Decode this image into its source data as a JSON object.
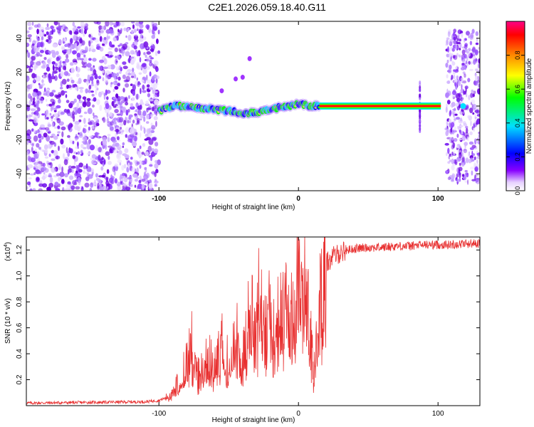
{
  "chart_data": [
    {
      "type": "heatmap",
      "title": "C2E1.2026.059.18.40.G11",
      "xlabel": "Height of straight line (km)",
      "ylabel": "Frequency (Hz)",
      "xlim": [
        -195,
        130
      ],
      "ylim": [
        -50,
        50
      ],
      "x_ticks": [
        -100,
        0,
        100
      ],
      "y_ticks": [
        -40,
        -20,
        0,
        20,
        40
      ],
      "colorbar": {
        "label": "Normalized spectral amplitude",
        "range": [
          0,
          1
        ],
        "ticks": [
          0.0,
          0.2,
          0.4,
          0.6,
          0.8
        ],
        "colors": [
          "#ffffff",
          "#8800ff",
          "#0000ff",
          "#00e0ff",
          "#00ff00",
          "#ffff00",
          "#ff8800",
          "#ff0000",
          "#ff0088"
        ]
      },
      "regions": {
        "noise_below_km": -100,
        "signal_track": [
          [
            -100,
            -3
          ],
          [
            -90,
            0
          ],
          [
            -80,
            0
          ],
          [
            -70,
            -1
          ],
          [
            -60,
            -2
          ],
          [
            -50,
            -3
          ],
          [
            -40,
            -4
          ],
          [
            -30,
            -4
          ],
          [
            -20,
            -2
          ],
          [
            -10,
            0
          ],
          [
            0,
            1
          ],
          [
            10,
            0
          ],
          [
            15,
            0
          ],
          [
            100,
            0
          ]
        ],
        "noise_above_km": 102
      }
    },
    {
      "type": "line",
      "xlabel": "Height of straight line (km)",
      "ylabel": "SNR (10 * v/v)",
      "y_scale_label": "(x10",
      "y_scale_exp": "4",
      "y_scale_close": ")",
      "xlim": [
        -195,
        130
      ],
      "ylim": [
        0,
        1.3
      ],
      "x_ticks": [
        -100,
        0,
        100
      ],
      "y_ticks": [
        0.2,
        0.4,
        0.6,
        0.8,
        1.0,
        1.2
      ],
      "y_tick_labels": [
        "0.2",
        "0.4",
        "0.6",
        "0.8",
        "1.0",
        "1.2"
      ],
      "color": "#e83030",
      "series": [
        {
          "name": "SNR",
          "x": [
            -195,
            -150,
            -110,
            -100,
            -95,
            -90,
            -85,
            -80,
            -77,
            -75,
            -70,
            -65,
            -60,
            -55,
            -50,
            -45,
            -40,
            -35,
            -30,
            -28,
            -25,
            -20,
            -18,
            -15,
            -10,
            -8,
            -5,
            0,
            3,
            5,
            8,
            10,
            11,
            12,
            13,
            15,
            18,
            20,
            25,
            30,
            35,
            40,
            50,
            60,
            70,
            80,
            90,
            100,
            110,
            120,
            130
          ],
          "y": [
            0.02,
            0.025,
            0.03,
            0.04,
            0.06,
            0.1,
            0.2,
            0.35,
            0.55,
            0.3,
            0.25,
            0.4,
            0.3,
            0.5,
            0.35,
            0.55,
            0.4,
            0.75,
            0.6,
            0.9,
            0.55,
            0.95,
            0.6,
            0.8,
            0.75,
            0.9,
            0.7,
            1.05,
            0.85,
            0.95,
            0.6,
            0.4,
            0.2,
            0.35,
            0.6,
            0.8,
            1.0,
            1.1,
            1.15,
            1.18,
            1.2,
            1.21,
            1.22,
            1.22,
            1.23,
            1.23,
            1.24,
            1.24,
            1.24,
            1.25,
            1.25
          ]
        }
      ]
    }
  ]
}
